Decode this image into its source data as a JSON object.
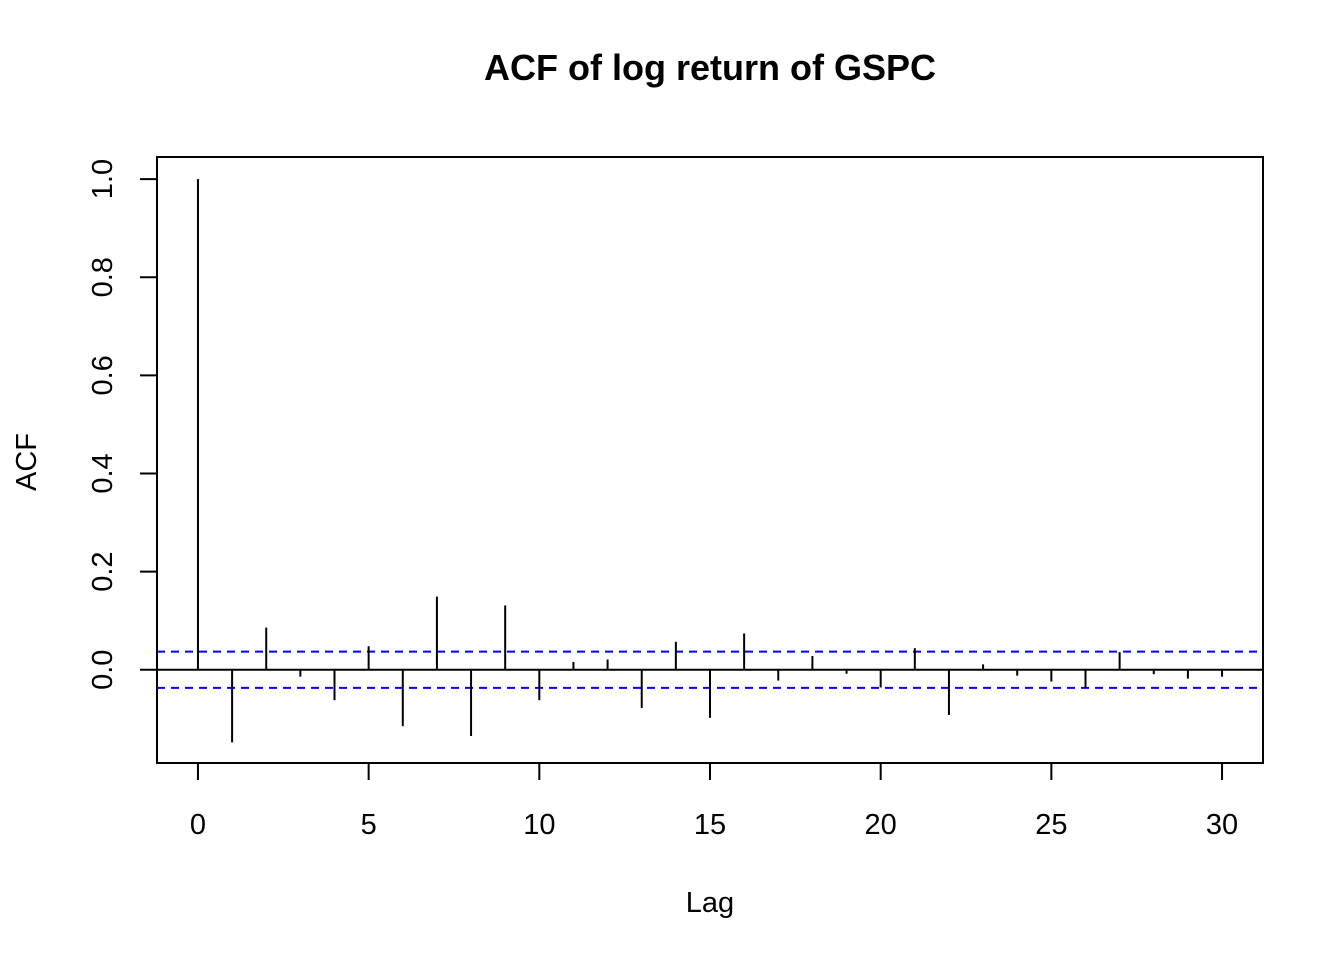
{
  "chart_data": {
    "type": "bar",
    "title": "ACF of log return of GSPC",
    "xlabel": "Lag",
    "ylabel": "ACF",
    "x": [
      0,
      1,
      2,
      3,
      4,
      5,
      6,
      7,
      8,
      9,
      10,
      11,
      12,
      13,
      14,
      15,
      16,
      17,
      18,
      19,
      20,
      21,
      22,
      23,
      24,
      25,
      26,
      27,
      28,
      29,
      30
    ],
    "values": [
      1.0,
      -0.148,
      0.086,
      -0.014,
      -0.062,
      0.048,
      -0.115,
      0.149,
      -0.135,
      0.131,
      -0.062,
      0.016,
      0.021,
      -0.078,
      0.057,
      -0.098,
      0.074,
      -0.022,
      0.028,
      -0.008,
      -0.036,
      0.044,
      -0.092,
      0.011,
      -0.012,
      -0.024,
      -0.037,
      0.036,
      -0.009,
      -0.018,
      -0.014
    ],
    "conf_level": 0.037,
    "xlim": [
      -1.2,
      31.2
    ],
    "ylim": [
      -0.19,
      1.045
    ],
    "x_ticks": [
      0,
      5,
      10,
      15,
      20,
      25,
      30
    ],
    "y_ticks": [
      0.0,
      0.2,
      0.4,
      0.6,
      0.8,
      1.0
    ],
    "x_tick_labels": [
      "0",
      "5",
      "10",
      "15",
      "20",
      "25",
      "30"
    ],
    "y_tick_labels": [
      "0.0",
      "0.2",
      "0.4",
      "0.6",
      "0.8",
      "1.0"
    ],
    "colors": {
      "bars": "#000000",
      "confidence_band": "#0000ff",
      "axis": "#000000"
    },
    "grid": false,
    "legend": "none"
  }
}
